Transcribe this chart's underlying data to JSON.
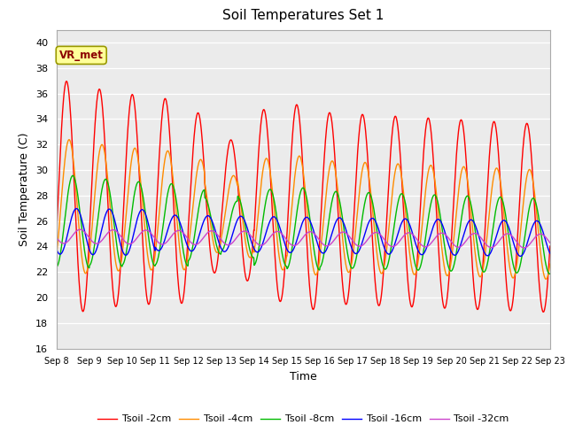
{
  "title": "Soil Temperatures Set 1",
  "xlabel": "Time",
  "ylabel": "Soil Temperature (C)",
  "ylim": [
    16,
    41
  ],
  "yticks": [
    16,
    18,
    20,
    22,
    24,
    26,
    28,
    30,
    32,
    34,
    36,
    38,
    40
  ],
  "x_labels": [
    "Sep 8",
    "Sep 9",
    "Sep 10",
    "Sep 11",
    "Sep 12",
    "Sep 13",
    "Sep 14",
    "Sep 15",
    "Sep 16",
    "Sep 17",
    "Sep 18",
    "Sep 19",
    "Sep 20",
    "Sep 21",
    "Sep 22",
    "Sep 23"
  ],
  "annotation_text": "VR_met",
  "line_colors": {
    "2cm": "#FF0000",
    "4cm": "#FF8C00",
    "8cm": "#00BB00",
    "16cm": "#0000FF",
    "32cm": "#CC44CC"
  },
  "legend_labels": [
    "Tsoil -2cm",
    "Tsoil -4cm",
    "Tsoil -8cm",
    "Tsoil -16cm",
    "Tsoil -32cm"
  ],
  "plot_bg_color": "#EBEBEB",
  "grid_color": "#FFFFFF",
  "fig_bg_color": "#FFFFFF",
  "n_points": 1440
}
